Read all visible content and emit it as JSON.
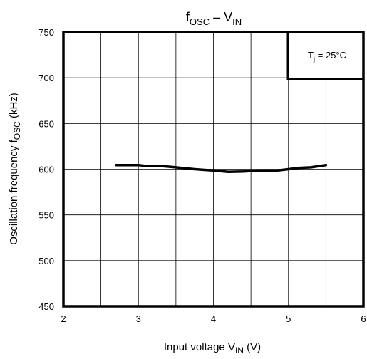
{
  "chart_data": {
    "type": "line",
    "title": {
      "main_f": "f",
      "main_sub": "OSC",
      "dash": " – ",
      "main_v": "V",
      "v_sub": "IN"
    },
    "xlabel": {
      "text": "Input voltage",
      "var": "V",
      "var_sub": "IN",
      "unit": "(V)"
    },
    "ylabel": {
      "text": "Oscillation frequency",
      "var": "f",
      "var_sub": "OSC",
      "unit": "(kHz)"
    },
    "xlim": [
      2,
      6
    ],
    "ylim": [
      450,
      750
    ],
    "x_ticks": [
      "2",
      "3",
      "4",
      "5",
      "6"
    ],
    "y_ticks": [
      "450",
      "500",
      "550",
      "600",
      "650",
      "700",
      "750"
    ],
    "x_grid_values": [
      2.5,
      3,
      3.5,
      4,
      4.5,
      5,
      5.5
    ],
    "y_grid_values": [
      500,
      550,
      600,
      650,
      700
    ],
    "annotation": {
      "prefix": "T",
      "sub": "j",
      "suffix": " = 25°C",
      "position": "top-right"
    },
    "series": [
      {
        "color": "#000000",
        "x": [
          2.7,
          3.0,
          3.1,
          3.3,
          3.5,
          3.75,
          4.0,
          4.2,
          4.4,
          4.6,
          4.85,
          5.0,
          5.15,
          5.3,
          5.5
        ],
        "y": [
          604.5,
          604.5,
          603.5,
          603.5,
          602,
          600,
          598.5,
          597,
          597.5,
          598.5,
          598.5,
          600,
          601.5,
          602,
          604.5
        ]
      }
    ]
  }
}
